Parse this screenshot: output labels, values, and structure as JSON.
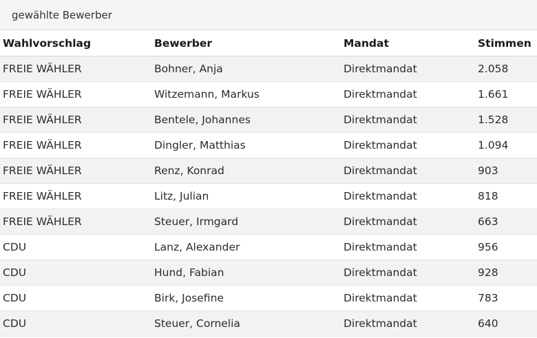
{
  "caption": "gewählte Bewerber",
  "table": {
    "headers": [
      "Wahlvorschlag",
      "Bewerber",
      "Mandat",
      "Stimmen"
    ],
    "rows": [
      [
        "FREIE WÄHLER",
        "Bohner, Anja",
        "Direktmandat",
        "2.058"
      ],
      [
        "FREIE WÄHLER",
        "Witzemann, Markus",
        "Direktmandat",
        "1.661"
      ],
      [
        "FREIE WÄHLER",
        "Bentele, Johannes",
        "Direktmandat",
        "1.528"
      ],
      [
        "FREIE WÄHLER",
        "Dingler, Matthias",
        "Direktmandat",
        "1.094"
      ],
      [
        "FREIE WÄHLER",
        "Renz, Konrad",
        "Direktmandat",
        "903"
      ],
      [
        "FREIE WÄHLER",
        "Litz, Julian",
        "Direktmandat",
        "818"
      ],
      [
        "FREIE WÄHLER",
        "Steuer, Irmgard",
        "Direktmandat",
        "663"
      ],
      [
        "CDU",
        "Lanz, Alexander",
        "Direktmandat",
        "956"
      ],
      [
        "CDU",
        "Hund, Fabian",
        "Direktmandat",
        "928"
      ],
      [
        "CDU",
        "Birk, Josefine",
        "Direktmandat",
        "783"
      ],
      [
        "CDU",
        "Steuer, Cornelia",
        "Direktmandat",
        "640"
      ]
    ]
  }
}
